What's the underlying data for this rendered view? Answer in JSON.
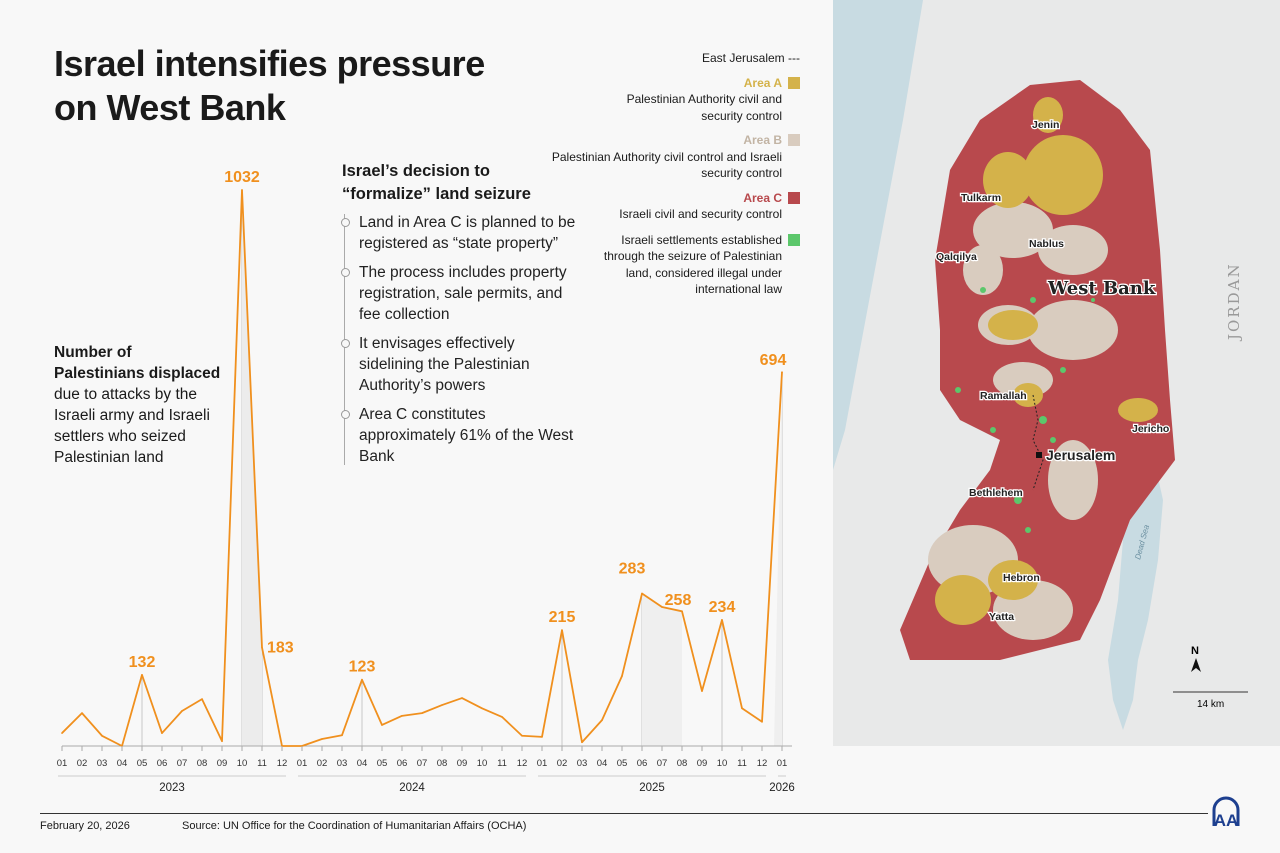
{
  "title": "Israel intensifies pressure on West Bank",
  "description": {
    "bold": "Number of Palestinians displaced",
    "rest": " due to attacks by the Israeli army and Israeli settlers who seized Palestinian land"
  },
  "decision": {
    "heading": "Israel’s decision to “formalize” land seizure",
    "bullets": [
      "Land in Area C is planned to be registered as “state property”",
      "The process includes property registration, sale permits, and fee collection",
      "It envisages effectively sidelining the Palestinian Authority’s powers",
      "Area C constitutes approximately 61% of the West Bank"
    ]
  },
  "legend": {
    "east_jerusalem": "East Jerusalem ---",
    "items": [
      {
        "label": "Area A",
        "desc": "Palestinian Authority civil and security control",
        "color": "#d4b24a"
      },
      {
        "label": "Area B",
        "desc": "Palestinian Authority civil control and Israeli security control",
        "color": "#d9ccbf"
      },
      {
        "label": "Area C",
        "desc": "Israeli civil and security control",
        "color": "#b8494d"
      },
      {
        "label": "",
        "desc": "Israeli settlements established through the seizure of Palestinian land, considered illegal under international law",
        "color": "#5cc76b"
      }
    ]
  },
  "chart_data": {
    "type": "line",
    "color": "#f0901e",
    "x_ticks": [
      "01",
      "02",
      "03",
      "04",
      "05",
      "06",
      "07",
      "08",
      "09",
      "10",
      "11",
      "12",
      "01",
      "02",
      "03",
      "04",
      "05",
      "06",
      "07",
      "08",
      "09",
      "10",
      "11",
      "12",
      "01",
      "02",
      "03",
      "04",
      "05",
      "06",
      "07",
      "08",
      "09",
      "10",
      "11",
      "12",
      "01"
    ],
    "years": [
      {
        "label": "2023",
        "start": 0,
        "end": 11
      },
      {
        "label": "2024",
        "start": 12,
        "end": 23
      },
      {
        "label": "2025",
        "start": 24,
        "end": 35
      },
      {
        "label": "2026",
        "start": 36,
        "end": 36
      }
    ],
    "values": [
      24,
      61,
      19,
      0,
      132,
      24,
      65,
      87,
      9,
      1032,
      183,
      0,
      0,
      13,
      20,
      123,
      39,
      56,
      61,
      76,
      89,
      70,
      54,
      19,
      17,
      215,
      7,
      48,
      130,
      283,
      258,
      250,
      102,
      234,
      70,
      45,
      694
    ],
    "labeled_points": [
      4,
      9,
      10,
      15,
      25,
      29,
      30,
      33,
      36
    ],
    "ylim": [
      0,
      1032
    ],
    "grid": false
  },
  "map": {
    "labels": {
      "jenin": "Jenin",
      "tulkarm": "Tulkarm",
      "nablus": "Nablus",
      "qalqilya": "Qalqilya",
      "west_bank": "West Bank",
      "ramallah": "Ramallah",
      "jericho": "Jericho",
      "jerusalem": "Jerusalem",
      "bethlehem": "Bethlehem",
      "hebron": "Hebron",
      "yatta": "Yatta",
      "jordan": "JORDAN",
      "dead_sea": "Dead Sea",
      "north": "N",
      "scale": "14 km"
    },
    "colors": {
      "water": "#c8dbe2",
      "land": "#e8e9e9"
    }
  },
  "footer": {
    "date": "February 20, 2026",
    "source": "Source: UN Office for the Coordination of Humanitarian Affairs (OCHA)",
    "logo": "AA"
  }
}
